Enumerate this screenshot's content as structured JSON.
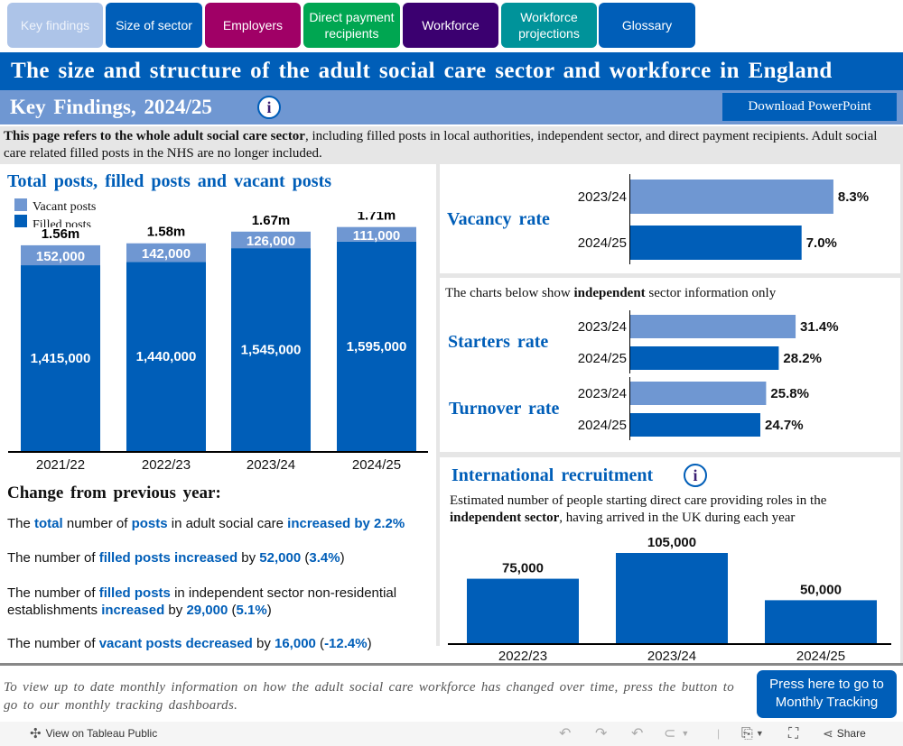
{
  "nav": {
    "tabs": [
      {
        "label": "Key findings",
        "color": "#adc4e8",
        "text_color": "#eef3fb",
        "active": true
      },
      {
        "label": "Size of sector",
        "color": "#005eb8",
        "text_color": "#ffffff",
        "active": false
      },
      {
        "label": "Employers",
        "color": "#a00066",
        "text_color": "#ffffff",
        "active": false
      },
      {
        "label": "Direct payment recipients",
        "color": "#00a651",
        "text_color": "#ffffff",
        "active": false
      },
      {
        "label": "Workforce",
        "color": "#3b0070",
        "text_color": "#ffffff",
        "active": false
      },
      {
        "label": "Workforce projections",
        "color": "#00939a",
        "text_color": "#ffffff",
        "active": false
      },
      {
        "label": "Glossary",
        "color": "#005eb8",
        "text_color": "#ffffff",
        "active": false
      }
    ]
  },
  "header": {
    "title": "The size and structure of the adult social care sector and workforce in England",
    "subtitle": "Key Findings, 2024/25",
    "info_icon": "info-icon",
    "download_label": "Download PowerPoint"
  },
  "intro": {
    "bold": "This page refers to the whole adult social care sector",
    "rest": ", including filled posts in local authorities, independent sector, and direct payment recipients. Adult social care related filled posts in the NHS are no longer included."
  },
  "colors": {
    "primary": "#005eb8",
    "light": "#6f97d2",
    "panel_gray": "#e6e6e6"
  },
  "posts_chart": {
    "title": "Total posts, filled posts and vacant posts",
    "legend": [
      "Vacant posts",
      "Filled posts"
    ]
  },
  "vacancy": {
    "title": "Vacancy rate"
  },
  "indep_note": {
    "pre": "The charts below show ",
    "bold": "independent",
    "post": " sector information only"
  },
  "starters": {
    "title": "Starters rate"
  },
  "turnover": {
    "title": "Turnover rate"
  },
  "intl": {
    "title": "International recruitment",
    "desc_pre": "Estimated number of people starting direct care providing roles in the ",
    "desc_bold": "independent sector",
    "desc_post": ", having arrived in the UK during each year"
  },
  "chart_data": [
    {
      "type": "bar",
      "stacked": true,
      "title": "Total posts, filled posts and vacant posts",
      "categories": [
        "2021/22",
        "2022/23",
        "2023/24",
        "2024/25"
      ],
      "series": [
        {
          "name": "Filled posts",
          "values": [
            1415000,
            1440000,
            1545000,
            1595000
          ],
          "labels": [
            "1,415,000",
            "1,440,000",
            "1,545,000",
            "1,595,000"
          ],
          "color": "#005eb8"
        },
        {
          "name": "Vacant posts",
          "values": [
            152000,
            142000,
            126000,
            111000
          ],
          "labels": [
            "152,000",
            "142,000",
            "126,000",
            "111,000"
          ],
          "color": "#6f97d2"
        }
      ],
      "totals": [
        "1.56m",
        "1.58m",
        "1.67m",
        "1.71m"
      ],
      "legend_position": "top-left",
      "ylim": [
        0,
        1800000
      ]
    },
    {
      "type": "bar",
      "orientation": "horizontal",
      "title": "Vacancy rate",
      "categories": [
        "2023/24",
        "2024/25"
      ],
      "values": [
        8.3,
        7.0
      ],
      "labels": [
        "8.3%",
        "7.0%"
      ],
      "colors": [
        "#6f97d2",
        "#005eb8"
      ],
      "xlim": [
        0,
        10
      ]
    },
    {
      "type": "bar",
      "orientation": "horizontal",
      "title": "Starters rate",
      "categories": [
        "2023/24",
        "2024/25"
      ],
      "values": [
        31.4,
        28.2
      ],
      "labels": [
        "31.4%",
        "28.2%"
      ],
      "colors": [
        "#6f97d2",
        "#005eb8"
      ],
      "xlim": [
        0,
        50
      ]
    },
    {
      "type": "bar",
      "orientation": "horizontal",
      "title": "Turnover rate",
      "categories": [
        "2023/24",
        "2024/25"
      ],
      "values": [
        25.8,
        24.7
      ],
      "labels": [
        "25.8%",
        "24.7%"
      ],
      "colors": [
        "#6f97d2",
        "#005eb8"
      ],
      "xlim": [
        0,
        50
      ]
    },
    {
      "type": "bar",
      "title": "International recruitment",
      "categories": [
        "2022/23",
        "2023/24",
        "2024/25"
      ],
      "values": [
        75000,
        105000,
        50000
      ],
      "labels": [
        "75,000",
        "105,000",
        "50,000"
      ],
      "color": "#005eb8",
      "ylim": [
        0,
        120000
      ]
    }
  ],
  "changes": {
    "title": "Change from previous year:",
    "lines": [
      [
        {
          "t": "The "
        },
        {
          "t": "total",
          "hl": true
        },
        {
          "t": " number of "
        },
        {
          "t": "posts",
          "hl": true
        },
        {
          "t": " in adult social care "
        },
        {
          "t": "increased by 2.2%",
          "hl": true
        }
      ],
      [
        {
          "t": "The number of "
        },
        {
          "t": "filled posts increased",
          "hl": true
        },
        {
          "t": " by "
        },
        {
          "t": "52,000",
          "hl": true
        },
        {
          "t": " ("
        },
        {
          "t": "3.4%",
          "hl": true
        },
        {
          "t": ")"
        }
      ],
      [
        {
          "t": "The number of "
        },
        {
          "t": "filled posts",
          "hl": true
        },
        {
          "t": " in independent sector non-residential establishments "
        },
        {
          "t": "increased",
          "hl": true
        },
        {
          "t": " by "
        },
        {
          "t": "29,000",
          "hl": true
        },
        {
          "t": " ("
        },
        {
          "t": "5.1%",
          "hl": true
        },
        {
          "t": ")"
        }
      ],
      [
        {
          "t": "The number of "
        },
        {
          "t": "vacant posts decreased",
          "hl": true
        },
        {
          "t": " by "
        },
        {
          "t": "16,000",
          "hl": true
        },
        {
          "t": " ("
        },
        {
          "t": "-12.4%",
          "hl": true
        },
        {
          "t": ")"
        }
      ]
    ]
  },
  "footer": {
    "text": "To view up to date monthly information on how the adult social care workforce has changed over time, press the button to go to our monthly tracking dashboards.",
    "button_label": "Press here to go to Monthly Tracking"
  },
  "toolbar": {
    "view_label": "View on Tableau Public",
    "share_label": "Share"
  }
}
